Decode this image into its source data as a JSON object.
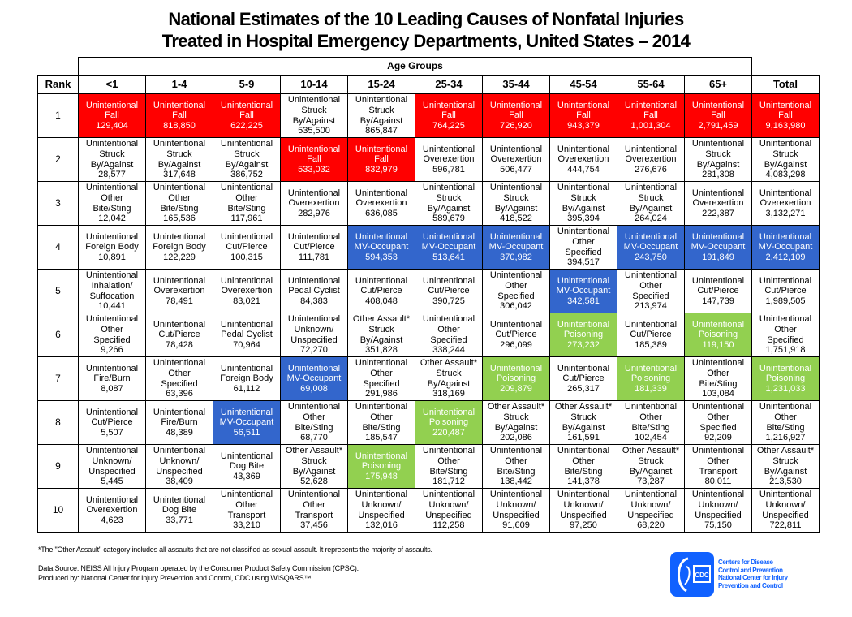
{
  "chart_data": {
    "type": "table",
    "title": [
      "National Estimates of the 10 Leading Causes of Nonfatal Injuries",
      "Treated in Hospital Emergency Departments, United States – 2014"
    ],
    "group_header": "Age Groups",
    "rank_header": "Rank",
    "columns": [
      "<1",
      "1-4",
      "5-9",
      "10-14",
      "15-24",
      "25-34",
      "35-44",
      "45-54",
      "55-64",
      "65+",
      "Total"
    ],
    "highlight_colors": {
      "fall": "#ff0000",
      "mv": "#3366cc",
      "pois": "#92d050"
    },
    "categories": {
      "fall": {
        "lines": [
          "Unintentional",
          "Fall"
        ]
      },
      "struck": {
        "lines": [
          "Unintentional",
          "Struck",
          "By/Against"
        ]
      },
      "bite": {
        "lines": [
          "Unintentional",
          "Other",
          "Bite/Sting"
        ]
      },
      "over": {
        "lines": [
          "Unintentional",
          "Overexertion"
        ]
      },
      "fb": {
        "lines": [
          "Unintentional",
          "Foreign Body"
        ]
      },
      "cut": {
        "lines": [
          "Unintentional",
          "Cut/Pierce"
        ]
      },
      "mv": {
        "lines": [
          "Unintentional",
          "MV-Occupant"
        ]
      },
      "other": {
        "lines": [
          "Unintentional",
          "Other",
          "Specified"
        ]
      },
      "inhal": {
        "lines": [
          "Unintentional",
          "Inhalation/",
          "Suffocation"
        ]
      },
      "pedal": {
        "lines": [
          "Unintentional",
          "Pedal Cyclist"
        ]
      },
      "unk": {
        "lines": [
          "Unintentional",
          "Unknown/",
          "Unspecified"
        ]
      },
      "assault": {
        "lines": [
          "Other Assault*",
          "Struck",
          "By/Against"
        ]
      },
      "pois": {
        "lines": [
          "Unintentional",
          "Poisoning"
        ]
      },
      "fire": {
        "lines": [
          "Unintentional",
          "Fire/Burn"
        ]
      },
      "dog": {
        "lines": [
          "Unintentional",
          "Dog Bite"
        ]
      },
      "transport": {
        "lines": [
          "Unintentional",
          "Other",
          "Transport"
        ]
      }
    },
    "rows": [
      {
        "rank": "1",
        "cells": [
          [
            "fall",
            "129,404"
          ],
          [
            "fall",
            "818,850"
          ],
          [
            "fall",
            "622,225"
          ],
          [
            "struck",
            "535,500"
          ],
          [
            "struck",
            "865,847"
          ],
          [
            "fall",
            "764,225"
          ],
          [
            "fall",
            "726,920"
          ],
          [
            "fall",
            "943,379"
          ],
          [
            "fall",
            "1,001,304"
          ],
          [
            "fall",
            "2,791,459"
          ],
          [
            "fall",
            "9,163,980"
          ]
        ]
      },
      {
        "rank": "2",
        "cells": [
          [
            "struck",
            "28,577"
          ],
          [
            "struck",
            "317,648"
          ],
          [
            "struck",
            "386,752"
          ],
          [
            "fall",
            "533,032"
          ],
          [
            "fall",
            "832,979"
          ],
          [
            "over",
            "596,781"
          ],
          [
            "over",
            "506,477"
          ],
          [
            "over",
            "444,754"
          ],
          [
            "over",
            "276,676"
          ],
          [
            "struck",
            "281,308"
          ],
          [
            "struck",
            "4,083,298"
          ]
        ]
      },
      {
        "rank": "3",
        "cells": [
          [
            "bite",
            "12,042"
          ],
          [
            "bite",
            "165,536"
          ],
          [
            "bite",
            "117,961"
          ],
          [
            "over",
            "282,976"
          ],
          [
            "over",
            "636,085"
          ],
          [
            "struck",
            "589,679"
          ],
          [
            "struck",
            "418,522"
          ],
          [
            "struck",
            "395,394"
          ],
          [
            "struck",
            "264,024"
          ],
          [
            "over",
            "222,387"
          ],
          [
            "over",
            "3,132,271"
          ]
        ]
      },
      {
        "rank": "4",
        "cells": [
          [
            "fb",
            "10,891"
          ],
          [
            "fb",
            "122,229"
          ],
          [
            "cut",
            "100,315"
          ],
          [
            "cut",
            "111,781"
          ],
          [
            "mv",
            "594,353"
          ],
          [
            "mv",
            "513,641"
          ],
          [
            "mv",
            "370,982"
          ],
          [
            "other",
            "394,517"
          ],
          [
            "mv",
            "243,750"
          ],
          [
            "mv",
            "191,849"
          ],
          [
            "mv",
            "2,412,109"
          ]
        ]
      },
      {
        "rank": "5",
        "cells": [
          [
            "inhal",
            "10,441"
          ],
          [
            "over",
            "78,491"
          ],
          [
            "over",
            "83,021"
          ],
          [
            "pedal",
            "84,383"
          ],
          [
            "cut",
            "408,048"
          ],
          [
            "cut",
            "390,725"
          ],
          [
            "other",
            "306,042"
          ],
          [
            "mv",
            "342,581"
          ],
          [
            "other",
            "213,974"
          ],
          [
            "cut",
            "147,739"
          ],
          [
            "cut",
            "1,989,505"
          ]
        ]
      },
      {
        "rank": "6",
        "cells": [
          [
            "other",
            "9,266"
          ],
          [
            "cut",
            "78,428"
          ],
          [
            "pedal",
            "70,964"
          ],
          [
            "unk",
            "72,270"
          ],
          [
            "assault",
            "351,828"
          ],
          [
            "other",
            "338,244"
          ],
          [
            "cut",
            "296,099"
          ],
          [
            "pois",
            "273,232"
          ],
          [
            "cut",
            "185,389"
          ],
          [
            "pois",
            "119,150"
          ],
          [
            "other",
            "1,751,918"
          ]
        ]
      },
      {
        "rank": "7",
        "cells": [
          [
            "fire",
            "8,087"
          ],
          [
            "other",
            "63,396"
          ],
          [
            "fb",
            "61,112"
          ],
          [
            "mv",
            "69,008"
          ],
          [
            "other",
            "291,986"
          ],
          [
            "assault",
            "318,169"
          ],
          [
            "pois",
            "209,879"
          ],
          [
            "cut",
            "265,317"
          ],
          [
            "pois",
            "181,339"
          ],
          [
            "bite",
            "103,084"
          ],
          [
            "pois",
            "1,231,033"
          ]
        ]
      },
      {
        "rank": "8",
        "cells": [
          [
            "cut",
            "5,507"
          ],
          [
            "fire",
            "48,389"
          ],
          [
            "mv",
            "56,511"
          ],
          [
            "bite",
            "68,770"
          ],
          [
            "bite",
            "185,547"
          ],
          [
            "pois",
            "220,487"
          ],
          [
            "assault",
            "202,086"
          ],
          [
            "assault",
            "161,591"
          ],
          [
            "bite",
            "102,454"
          ],
          [
            "other",
            "92,209"
          ],
          [
            "bite",
            "1,216,927"
          ]
        ]
      },
      {
        "rank": "9",
        "cells": [
          [
            "unk",
            "5,445"
          ],
          [
            "unk",
            "38,409"
          ],
          [
            "dog",
            "43,369"
          ],
          [
            "assault",
            "52,628"
          ],
          [
            "pois",
            "175,948"
          ],
          [
            "bite",
            "181,712"
          ],
          [
            "bite",
            "138,442"
          ],
          [
            "bite",
            "141,378"
          ],
          [
            "assault",
            "73,287"
          ],
          [
            "transport",
            "80,011"
          ],
          [
            "assault",
            "213,530"
          ]
        ]
      },
      {
        "rank": "10",
        "cells": [
          [
            "over",
            "4,623"
          ],
          [
            "dog",
            "33,771"
          ],
          [
            "transport",
            "33,210"
          ],
          [
            "transport",
            "37,456"
          ],
          [
            "unk",
            "132,016"
          ],
          [
            "unk",
            "112,258"
          ],
          [
            "unk",
            "91,609"
          ],
          [
            "unk",
            "97,250"
          ],
          [
            "unk",
            "68,220"
          ],
          [
            "unk",
            "75,150"
          ],
          [
            "unk",
            "722,811"
          ]
        ]
      }
    ]
  },
  "footnotes": {
    "assault_note": "*The \"Other Assault\" category includes all assaults that are not classified as sexual assault. It represents the majority of assaults.",
    "source": "Data Source: NEISS All Injury Program operated by the Consumer Product Safety Commission (CPSC).",
    "produced": "Produced by:  National Center for Injury Prevention and Control, CDC using WISQARS™."
  },
  "logo": {
    "mark": "CDC",
    "lines": [
      "Centers for Disease",
      "Control and Prevention",
      "National Center for Injury",
      "Prevention and Control"
    ],
    "color": "#1061ff"
  }
}
